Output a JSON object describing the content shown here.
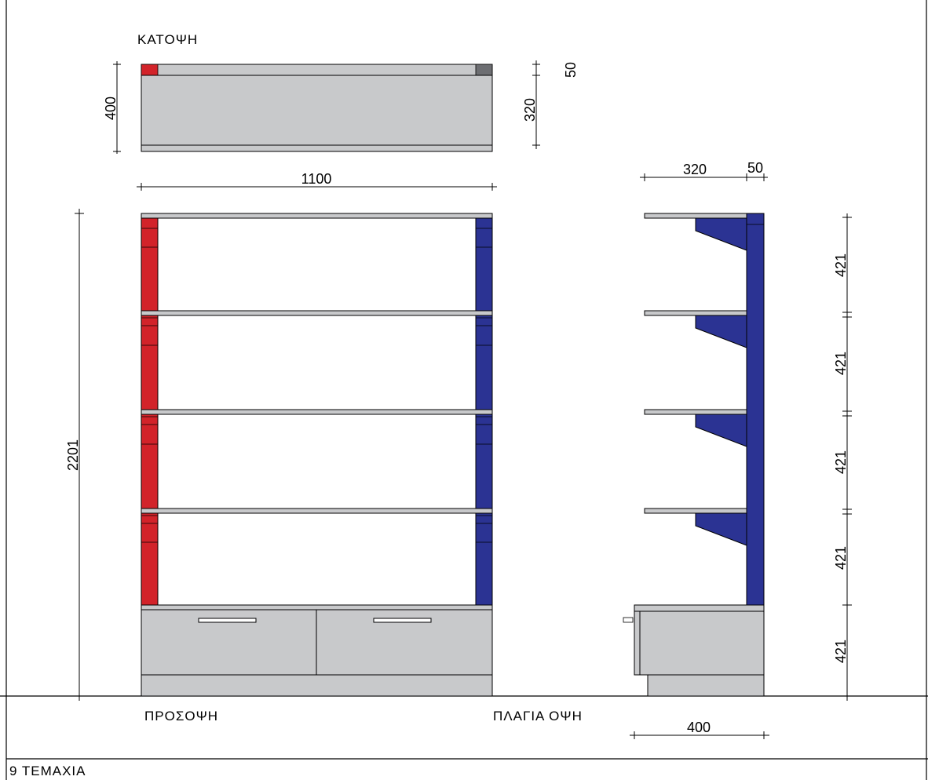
{
  "views": {
    "plan_title": "ΚΑΤΟΨΗ",
    "front_title": "ΠΡΟΣΟΨΗ",
    "side_title": "ΠΛΑΓΙΑ ΟΨΗ"
  },
  "footer": {
    "quantity_note": "9 ΤΕΜΑΧΙΑ"
  },
  "dimensions": {
    "plan_depth": "400",
    "plan_top_strip": "50",
    "plan_shelf_depth": "320",
    "total_width": "1100",
    "total_height": "2201",
    "side_shelf_depth": "320",
    "side_back_depth": "50",
    "side_base_depth": "400",
    "module_heights": [
      "421",
      "421",
      "421",
      "421",
      "421"
    ]
  },
  "colors": {
    "left_upright": "#d2232a",
    "right_upright": "#2b3393",
    "panel": "#c8c9cb",
    "line": "#000000"
  }
}
